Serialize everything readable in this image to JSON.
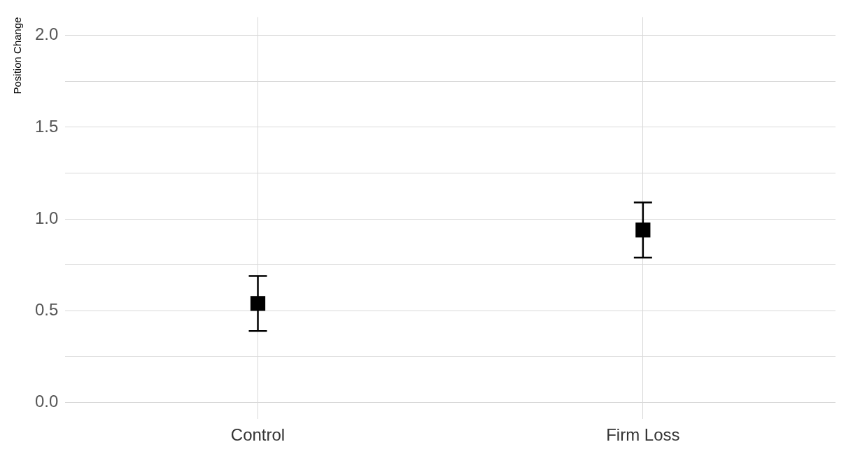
{
  "chart_data": {
    "type": "scatter",
    "ylabel": "Position Change",
    "categories": [
      "Control",
      "Firm Loss"
    ],
    "series": [
      {
        "color": "#000000",
        "values": [
          0.54,
          0.94
        ],
        "errors": [
          0.15,
          0.15
        ]
      }
    ],
    "marker": "square",
    "grid": true,
    "ylim": [
      -0.09,
      2.1
    ],
    "yticks": [
      {
        "value": 0,
        "label": "0.0"
      },
      {
        "value": 0.25,
        "label": null
      },
      0.5,
      {
        "value": 0.75,
        "label": null
      },
      {
        "value": 1,
        "label": "1.0"
      },
      {
        "value": 1.25,
        "label": null
      },
      1.5,
      {
        "value": 1.75,
        "label": null
      },
      {
        "value": 2,
        "label": "2.0"
      }
    ]
  }
}
